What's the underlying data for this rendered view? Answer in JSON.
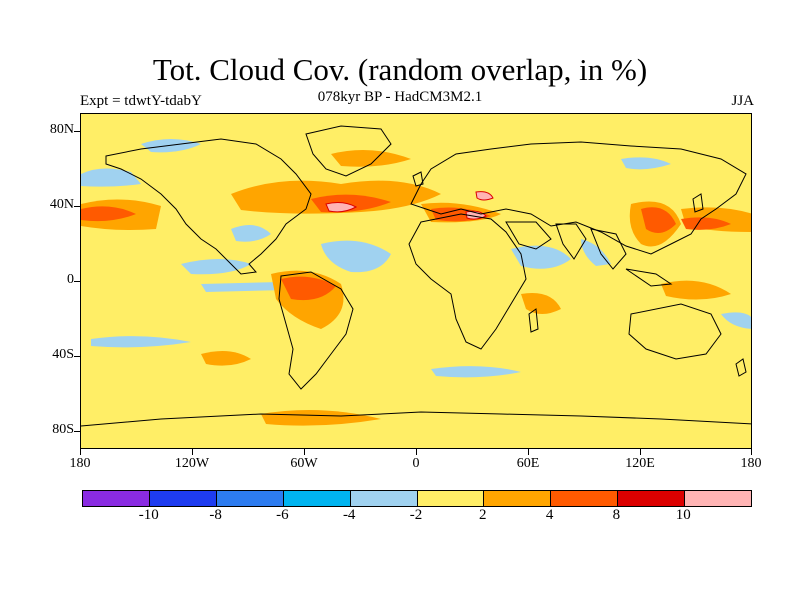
{
  "header": {
    "title": "Tot. Cloud Cov. (random overlap, in %)",
    "subtitle": "078kyr BP - HadCM3M2.1",
    "experiment": "Expt = tdwtY-tdabY",
    "season": "JJA"
  },
  "map": {
    "lat_labels": [
      "80N",
      "40N",
      "0",
      "40S",
      "80S"
    ],
    "lon_labels": [
      "180",
      "120W",
      "60W",
      "0",
      "60E",
      "120E",
      "180"
    ],
    "background_color": "#ffee66",
    "coastline_color": "#000000"
  },
  "colorbar": {
    "colors": [
      "#8a2be2",
      "#1e3cf0",
      "#2d7cf0",
      "#00b4f0",
      "#a0d2f0",
      "#ffee66",
      "#ffa500",
      "#ff5a00",
      "#dc0000",
      "#ffb4b4"
    ],
    "labels": [
      "-10",
      "-8",
      "-6",
      "-4",
      "-2",
      "2",
      "4",
      "8",
      "10"
    ]
  }
}
